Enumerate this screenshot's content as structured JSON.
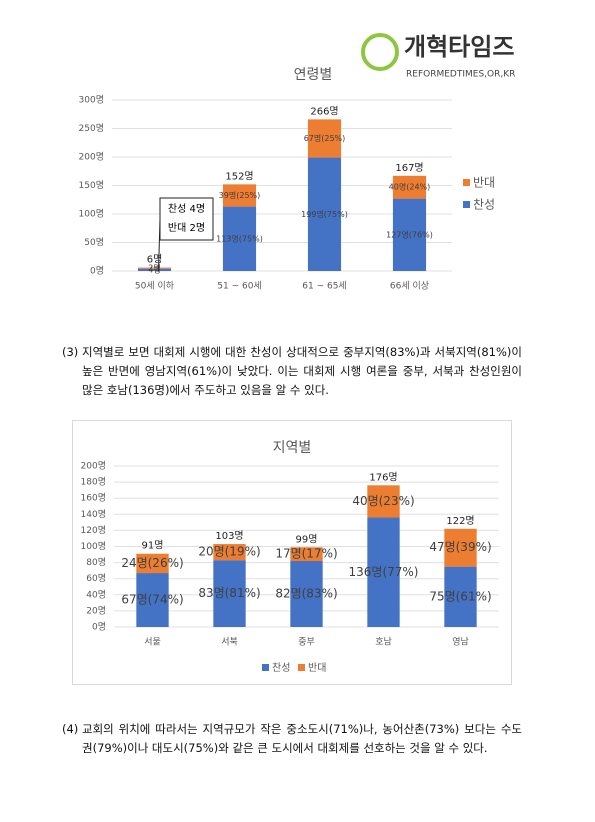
{
  "logo": {
    "name": "개혁타임즈",
    "url": "REFORMEDTIMES,OR,KR"
  },
  "chart_data": [
    {
      "type": "bar",
      "stacked": true,
      "title": "연령별",
      "categories": [
        "50세 이하",
        "51 ~ 60세",
        "61 ~ 65세",
        "66세 이상"
      ],
      "series": [
        {
          "name": "찬성",
          "color": "#4472c4",
          "values": [
            4,
            113,
            199,
            127
          ],
          "value_labels": [
            "4명",
            "113명(75%)",
            "199명(75%)",
            "127명(76%)"
          ]
        },
        {
          "name": "반대",
          "color": "#ed7d31",
          "values": [
            2,
            39,
            67,
            40
          ],
          "value_labels": [
            "2명",
            "39명(25%)",
            "67명(25%)",
            "40명(24%)"
          ]
        }
      ],
      "totals": [
        6,
        152,
        266,
        167
      ],
      "total_labels": [
        "6명",
        "152명",
        "266명",
        "167명"
      ],
      "annotations": [
        "찬성 4명",
        "반대 2명"
      ],
      "ylim": [
        0,
        300
      ],
      "yticks": [
        {
          "value": 0,
          "label": "0명"
        },
        {
          "value": 50,
          "label": "50명"
        },
        {
          "value": 100,
          "label": "100명"
        },
        {
          "value": 150,
          "label": "150명"
        },
        {
          "value": 200,
          "label": "200명"
        },
        {
          "value": 250,
          "label": "250명"
        },
        {
          "value": 300,
          "label": "300명"
        }
      ],
      "grid": true,
      "legend": "right"
    },
    {
      "type": "bar",
      "stacked": true,
      "title": "지역별",
      "categories": [
        "서울",
        "서북",
        "중부",
        "호남",
        "영남"
      ],
      "series": [
        {
          "name": "찬성",
          "color": "#4472c4",
          "values": [
            67,
            83,
            82,
            136,
            75
          ],
          "value_labels": [
            "67명(74%)",
            "83명(81%)",
            "82명(83%)",
            "136명(77%)",
            "75명(61%)"
          ]
        },
        {
          "name": "반대",
          "color": "#ed7d31",
          "values": [
            24,
            20,
            17,
            40,
            47
          ],
          "value_labels": [
            "24명(26%)",
            "20명(19%)",
            "17명(17%)",
            "40명(23%)",
            "47명(39%)"
          ]
        }
      ],
      "totals": [
        91,
        103,
        99,
        176,
        122
      ],
      "total_labels": [
        "91명",
        "103명",
        "99명",
        "176명",
        "122명"
      ],
      "ylim": [
        0,
        200
      ],
      "yticks": [
        {
          "value": 0,
          "label": "0명"
        },
        {
          "value": 20,
          "label": "20명"
        },
        {
          "value": 40,
          "label": "40명"
        },
        {
          "value": 60,
          "label": "60명"
        },
        {
          "value": 80,
          "label": "80명"
        },
        {
          "value": 100,
          "label": "100명"
        },
        {
          "value": 120,
          "label": "120명"
        },
        {
          "value": 140,
          "label": "140명"
        },
        {
          "value": 160,
          "label": "160명"
        },
        {
          "value": 180,
          "label": "180명"
        },
        {
          "value": 200,
          "label": "200명"
        }
      ],
      "grid": true,
      "legend": "bottom"
    }
  ],
  "paragraphs": [
    {
      "number": "(3)",
      "text": "지역별로 보면 대회제 시행에 대한 찬성이 상대적으로 중부지역(83%)과 서북지역(81%)이 높은 반면에 영남지역(61%)이 낮았다. 이는 대회제 시행 여론을 중부, 서북과 찬성인원이 많은 호남(136명)에서 주도하고 있음을 알 수 있다."
    },
    {
      "number": "(4)",
      "text": "교회의 위치에 따라서는 지역규모가 작은 중소도시(71%)나, 농어산촌(73%) 보다는 수도권(79%)이나 대도시(75%)와 같은 큰 도시에서 대회제를 선호하는 것을 알 수 있다."
    }
  ]
}
